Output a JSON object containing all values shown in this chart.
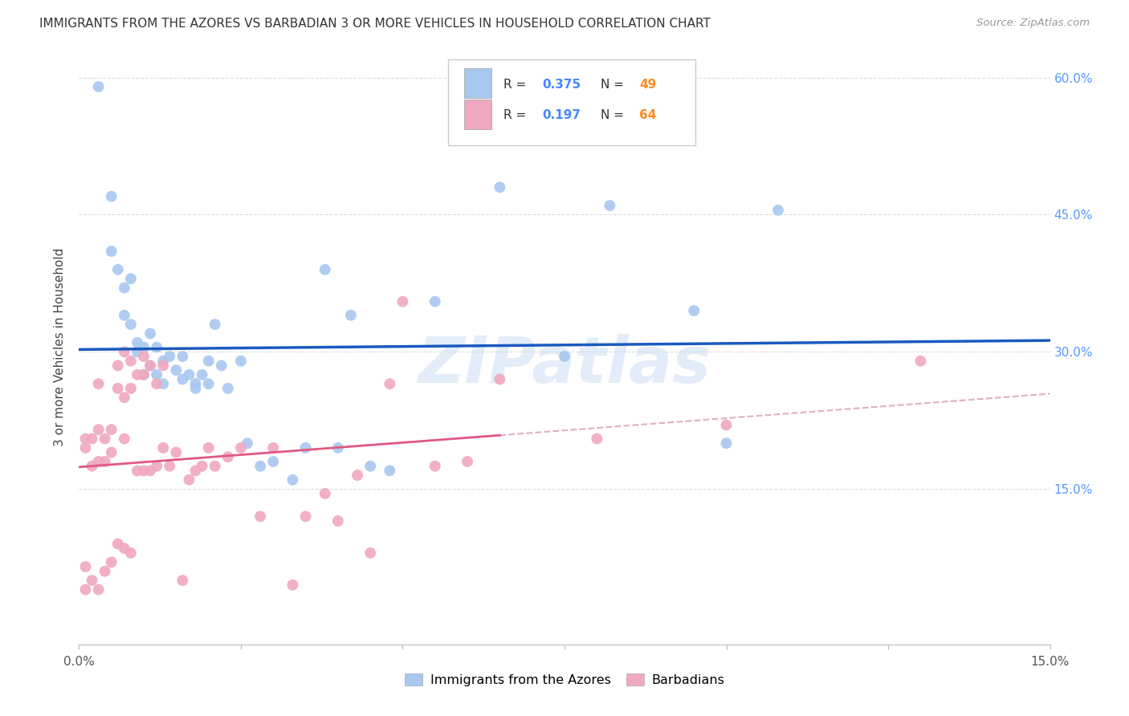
{
  "title": "IMMIGRANTS FROM THE AZORES VS BARBADIAN 3 OR MORE VEHICLES IN HOUSEHOLD CORRELATION CHART",
  "source": "Source: ZipAtlas.com",
  "ylabel": "3 or more Vehicles in Household",
  "R_azores": 0.375,
  "N_azores": 49,
  "R_barbadian": 0.197,
  "N_barbadian": 64,
  "legend_label_1": "Immigrants from the Azores",
  "legend_label_2": "Barbadians",
  "color_azores": "#a8c8f0",
  "color_barbadian": "#f0a8c0",
  "line_color_azores": "#1a5abf",
  "line_color_barbadian": "#e05880",
  "line_color_barbadian_dashed": "#e0b0c0",
  "background_color": "#ffffff",
  "watermark": "ZIPatlas",
  "xlim": [
    0.0,
    0.15
  ],
  "ylim": [
    -0.02,
    0.63
  ],
  "azores_x": [
    0.003,
    0.005,
    0.005,
    0.006,
    0.007,
    0.007,
    0.008,
    0.008,
    0.009,
    0.009,
    0.01,
    0.01,
    0.011,
    0.011,
    0.012,
    0.012,
    0.013,
    0.013,
    0.014,
    0.015,
    0.016,
    0.016,
    0.017,
    0.018,
    0.018,
    0.019,
    0.02,
    0.02,
    0.021,
    0.022,
    0.023,
    0.025,
    0.026,
    0.028,
    0.03,
    0.033,
    0.035,
    0.038,
    0.04,
    0.042,
    0.045,
    0.048,
    0.055,
    0.065,
    0.075,
    0.082,
    0.095,
    0.1,
    0.108
  ],
  "azores_y": [
    0.59,
    0.47,
    0.41,
    0.39,
    0.37,
    0.34,
    0.38,
    0.33,
    0.31,
    0.3,
    0.305,
    0.275,
    0.32,
    0.285,
    0.305,
    0.275,
    0.29,
    0.265,
    0.295,
    0.28,
    0.295,
    0.27,
    0.275,
    0.265,
    0.26,
    0.275,
    0.29,
    0.265,
    0.33,
    0.285,
    0.26,
    0.29,
    0.2,
    0.175,
    0.18,
    0.16,
    0.195,
    0.39,
    0.195,
    0.34,
    0.175,
    0.17,
    0.355,
    0.48,
    0.295,
    0.46,
    0.345,
    0.2,
    0.455
  ],
  "barbadian_x": [
    0.001,
    0.001,
    0.001,
    0.001,
    0.002,
    0.002,
    0.002,
    0.003,
    0.003,
    0.003,
    0.003,
    0.004,
    0.004,
    0.004,
    0.005,
    0.005,
    0.005,
    0.006,
    0.006,
    0.006,
    0.007,
    0.007,
    0.007,
    0.007,
    0.008,
    0.008,
    0.008,
    0.009,
    0.009,
    0.01,
    0.01,
    0.01,
    0.011,
    0.011,
    0.012,
    0.012,
    0.013,
    0.013,
    0.014,
    0.015,
    0.016,
    0.017,
    0.018,
    0.019,
    0.02,
    0.021,
    0.023,
    0.025,
    0.028,
    0.03,
    0.033,
    0.035,
    0.038,
    0.04,
    0.043,
    0.045,
    0.048,
    0.05,
    0.055,
    0.06,
    0.065,
    0.08,
    0.1,
    0.13
  ],
  "barbadian_y": [
    0.205,
    0.195,
    0.065,
    0.04,
    0.205,
    0.175,
    0.05,
    0.265,
    0.215,
    0.18,
    0.04,
    0.205,
    0.18,
    0.06,
    0.215,
    0.19,
    0.07,
    0.285,
    0.26,
    0.09,
    0.3,
    0.25,
    0.205,
    0.085,
    0.29,
    0.26,
    0.08,
    0.275,
    0.17,
    0.295,
    0.275,
    0.17,
    0.285,
    0.17,
    0.265,
    0.175,
    0.285,
    0.195,
    0.175,
    0.19,
    0.05,
    0.16,
    0.17,
    0.175,
    0.195,
    0.175,
    0.185,
    0.195,
    0.12,
    0.195,
    0.045,
    0.12,
    0.145,
    0.115,
    0.165,
    0.08,
    0.265,
    0.355,
    0.175,
    0.18,
    0.27,
    0.205,
    0.22,
    0.29
  ]
}
